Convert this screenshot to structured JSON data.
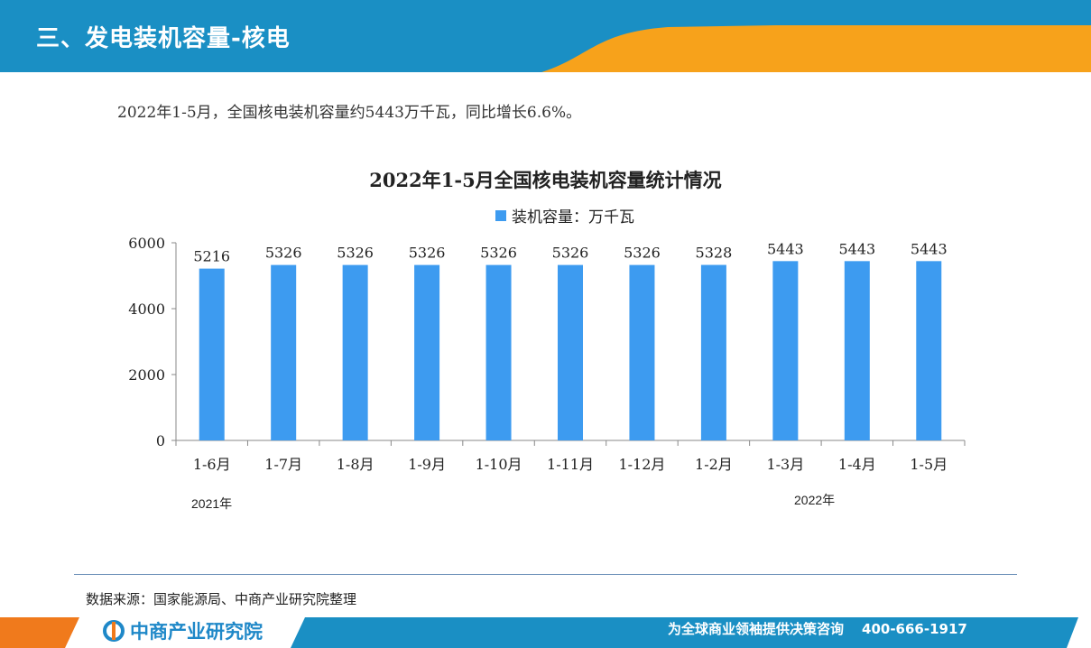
{
  "header": {
    "title": "三、发电装机容量-核电"
  },
  "summary": "2022年1-5月，全国核电装机容量约5443万千瓦，同比增长6.6%。",
  "chart_data": {
    "type": "bar",
    "title": "2022年1-5月全国核电装机容量统计情况",
    "categories": [
      "1-6月",
      "1-7月",
      "1-8月",
      "1-9月",
      "1-10月",
      "1-11月",
      "1-12月",
      "1-2月",
      "1-3月",
      "1-4月",
      "1-5月"
    ],
    "series": [
      {
        "name": "装机容量：万千瓦",
        "values": [
          5216,
          5326,
          5326,
          5326,
          5326,
          5326,
          5326,
          5328,
          5443,
          5443,
          5443
        ],
        "color": "#3d9bf0"
      }
    ],
    "ylim": [
      0,
      6000
    ],
    "yticks": [
      0,
      2000,
      4000,
      6000
    ],
    "year_groups": [
      "2021年",
      "2022年"
    ],
    "legend_position": "top",
    "grid": false
  },
  "footer": {
    "source": "数据来源：国家能源局、中商产业研究院整理",
    "logo_text": "中商产业研究院",
    "slogan": "为全球商业领袖提供决策咨询",
    "phone": "400-666-1917"
  },
  "colors": {
    "banner_blue": "#1a8fc4",
    "banner_orange": "#f7a21b",
    "bar": "#3d9bf0"
  }
}
